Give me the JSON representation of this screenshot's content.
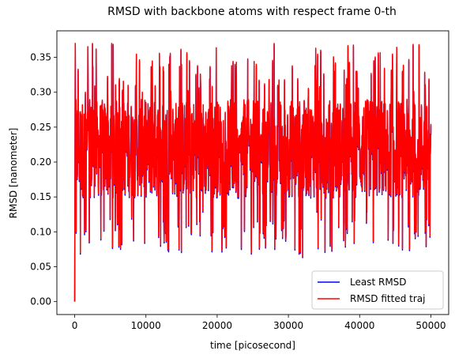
{
  "chart_data": {
    "type": "line",
    "title": "RMSD with backbone atoms with respect frame 0-th",
    "xlabel": "time [picosecond]",
    "ylabel": "RMSD [nanometer]",
    "xlim": [
      -2500,
      52500
    ],
    "ylim": [
      -0.0185,
      0.388
    ],
    "xticks": [
      0,
      10000,
      20000,
      30000,
      40000,
      50000
    ],
    "xtick_labels": [
      "0",
      "10000",
      "20000",
      "30000",
      "40000",
      "50000"
    ],
    "yticks": [
      0.0,
      0.05,
      0.1,
      0.15,
      0.2,
      0.25,
      0.3,
      0.35
    ],
    "ytick_labels": [
      "0.00",
      "0.05",
      "0.10",
      "0.15",
      "0.20",
      "0.25",
      "0.30",
      "0.35"
    ],
    "grid": false,
    "legend_position": "lower right",
    "x_range": [
      0,
      50000
    ],
    "series": [
      {
        "name": "Least RMSD",
        "color": "#0000ff",
        "sampled": [
          [
            0,
            0.0
          ],
          [
            80,
            0.37
          ],
          [
            200,
            0.1
          ],
          [
            500,
            0.27
          ],
          [
            800,
            0.07
          ],
          [
            1500,
            0.3
          ],
          [
            2500,
            0.37
          ],
          [
            5200,
            0.37
          ],
          [
            6200,
            0.08
          ],
          [
            7500,
            0.31
          ],
          [
            8000,
            0.12
          ],
          [
            9500,
            0.3
          ],
          [
            12500,
            0.33
          ],
          [
            15000,
            0.34
          ],
          [
            16000,
            0.11
          ],
          [
            18000,
            0.13
          ],
          [
            22500,
            0.34
          ],
          [
            23000,
            0.15
          ],
          [
            24800,
            0.07
          ],
          [
            25500,
            0.34
          ],
          [
            26000,
            0.1
          ],
          [
            26500,
            0.11
          ],
          [
            28000,
            0.37
          ],
          [
            28500,
            0.31
          ],
          [
            31500,
            0.07
          ],
          [
            32000,
            0.065
          ],
          [
            34000,
            0.13
          ],
          [
            36500,
            0.33
          ],
          [
            38000,
            0.08
          ],
          [
            39500,
            0.33
          ],
          [
            41000,
            0.13
          ],
          [
            42000,
            0.34
          ],
          [
            44000,
            0.09
          ],
          [
            45500,
            0.11
          ],
          [
            46000,
            0.33
          ],
          [
            47000,
            0.075
          ],
          [
            49200,
            0.1
          ],
          [
            50000,
            0.24
          ]
        ]
      },
      {
        "name": "RMSD fitted traj",
        "color": "#ff0000",
        "sampled": [
          [
            0,
            0.0
          ],
          [
            80,
            0.37
          ],
          [
            200,
            0.1
          ],
          [
            500,
            0.27
          ],
          [
            800,
            0.07
          ],
          [
            1500,
            0.3
          ],
          [
            2500,
            0.37
          ],
          [
            5200,
            0.37
          ],
          [
            6200,
            0.08
          ],
          [
            7500,
            0.31
          ],
          [
            8000,
            0.12
          ],
          [
            9500,
            0.3
          ],
          [
            12500,
            0.33
          ],
          [
            15000,
            0.34
          ],
          [
            16000,
            0.11
          ],
          [
            18000,
            0.13
          ],
          [
            22500,
            0.34
          ],
          [
            23000,
            0.15
          ],
          [
            24800,
            0.07
          ],
          [
            25500,
            0.34
          ],
          [
            26000,
            0.1
          ],
          [
            26500,
            0.11
          ],
          [
            28000,
            0.37
          ],
          [
            28500,
            0.31
          ],
          [
            31500,
            0.07
          ],
          [
            32000,
            0.065
          ],
          [
            34000,
            0.13
          ],
          [
            36500,
            0.33
          ],
          [
            38000,
            0.08
          ],
          [
            39500,
            0.33
          ],
          [
            41000,
            0.13
          ],
          [
            42000,
            0.34
          ],
          [
            44000,
            0.09
          ],
          [
            45500,
            0.11
          ],
          [
            46000,
            0.33
          ],
          [
            47000,
            0.075
          ],
          [
            49200,
            0.1
          ],
          [
            50000,
            0.24
          ]
        ]
      }
    ]
  }
}
